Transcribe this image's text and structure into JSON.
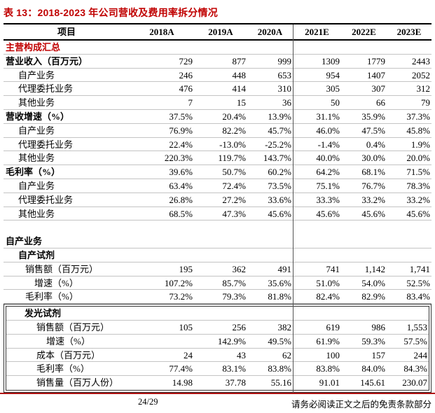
{
  "title": "表 13：2018-2023 年公司营收及费用率拆分情况",
  "table": {
    "header": [
      "项目",
      "2018A",
      "2019A",
      "2020A",
      "2021E",
      "2022E",
      "2023E"
    ],
    "rows": [
      {
        "label": "主营构成汇总",
        "style": "red-bold",
        "indent": 0,
        "box": false,
        "values": [
          "",
          "",
          "",
          "",
          "",
          ""
        ]
      },
      {
        "label": "营业收入（百万元）",
        "style": "bold",
        "indent": 0,
        "box": false,
        "values": [
          "729",
          "877",
          "999",
          "1309",
          "1779",
          "2443"
        ]
      },
      {
        "label": "自产业务",
        "style": "normal",
        "indent": 1,
        "box": false,
        "values": [
          "246",
          "448",
          "653",
          "954",
          "1407",
          "2052"
        ]
      },
      {
        "label": "代理委托业务",
        "style": "normal",
        "indent": 1,
        "box": false,
        "values": [
          "476",
          "414",
          "310",
          "305",
          "307",
          "312"
        ]
      },
      {
        "label": "其他业务",
        "style": "normal",
        "indent": 1,
        "box": false,
        "values": [
          "7",
          "15",
          "36",
          "50",
          "66",
          "79"
        ]
      },
      {
        "label": "营收增速（%）",
        "style": "bold",
        "indent": 0,
        "box": false,
        "values": [
          "37.5%",
          "20.4%",
          "13.9%",
          "31.1%",
          "35.9%",
          "37.3%"
        ]
      },
      {
        "label": "自产业务",
        "style": "normal",
        "indent": 1,
        "box": false,
        "values": [
          "76.9%",
          "82.2%",
          "45.7%",
          "46.0%",
          "47.5%",
          "45.8%"
        ]
      },
      {
        "label": "代理委托业务",
        "style": "normal",
        "indent": 1,
        "box": false,
        "values": [
          "22.4%",
          "-13.0%",
          "-25.2%",
          "-1.4%",
          "0.4%",
          "1.9%"
        ]
      },
      {
        "label": "其他业务",
        "style": "normal",
        "indent": 1,
        "box": false,
        "values": [
          "220.3%",
          "119.7%",
          "143.7%",
          "40.0%",
          "30.0%",
          "20.0%"
        ]
      },
      {
        "label": "毛利率（%）",
        "style": "bold",
        "indent": 0,
        "box": false,
        "values": [
          "39.6%",
          "50.7%",
          "60.2%",
          "64.2%",
          "68.1%",
          "71.5%"
        ]
      },
      {
        "label": "自产业务",
        "style": "normal",
        "indent": 1,
        "box": false,
        "values": [
          "63.4%",
          "72.4%",
          "73.5%",
          "75.1%",
          "76.7%",
          "78.3%"
        ]
      },
      {
        "label": "代理委托业务",
        "style": "normal",
        "indent": 1,
        "box": false,
        "values": [
          "26.8%",
          "27.2%",
          "33.6%",
          "33.3%",
          "33.2%",
          "33.2%"
        ]
      },
      {
        "label": "其他业务",
        "style": "normal",
        "indent": 1,
        "box": false,
        "values": [
          "68.5%",
          "47.3%",
          "45.6%",
          "45.6%",
          "45.6%",
          "45.6%"
        ]
      },
      {
        "label": "",
        "style": "spacer",
        "indent": 0,
        "box": false,
        "values": [
          "",
          "",
          "",
          "",
          "",
          ""
        ]
      },
      {
        "label": "自产业务",
        "style": "bold",
        "indent": 0,
        "box": false,
        "values": [
          "",
          "",
          "",
          "",
          "",
          ""
        ]
      },
      {
        "label": "自产试剂",
        "style": "bold",
        "indent": 1,
        "box": false,
        "values": [
          "",
          "",
          "",
          "",
          "",
          ""
        ]
      },
      {
        "label": "销售额（百万元）",
        "style": "normal",
        "indent": 2,
        "box": false,
        "values": [
          "195",
          "362",
          "491",
          "741",
          "1,142",
          "1,741"
        ]
      },
      {
        "label": "增速（%）",
        "style": "normal",
        "indent": 3,
        "box": false,
        "values": [
          "107.2%",
          "85.7%",
          "35.6%",
          "51.0%",
          "54.0%",
          "52.5%"
        ]
      },
      {
        "label": "毛利率（%）",
        "style": "normal",
        "indent": 2,
        "box": false,
        "values": [
          "73.2%",
          "79.3%",
          "81.8%",
          "82.4%",
          "82.9%",
          "83.4%"
        ]
      },
      {
        "label": "发光试剂",
        "style": "bold",
        "indent": 1,
        "box": true,
        "values": [
          "",
          "",
          "",
          "",
          "",
          ""
        ]
      },
      {
        "label": "销售额（百万元）",
        "style": "normal",
        "indent": 2,
        "box": true,
        "values": [
          "105",
          "256",
          "382",
          "619",
          "986",
          "1,553"
        ]
      },
      {
        "label": "增速（%）",
        "style": "normal",
        "indent": 3,
        "box": true,
        "values": [
          "",
          "142.9%",
          "49.5%",
          "61.9%",
          "59.3%",
          "57.5%"
        ]
      },
      {
        "label": "成本（百万元）",
        "style": "normal",
        "indent": 2,
        "box": true,
        "values": [
          "24",
          "43",
          "62",
          "100",
          "157",
          "244"
        ]
      },
      {
        "label": "毛利率（%）",
        "style": "normal",
        "indent": 2,
        "box": true,
        "values": [
          "77.4%",
          "83.1%",
          "83.8%",
          "83.8%",
          "84.0%",
          "84.3%"
        ]
      },
      {
        "label": "销售量（百万人份）",
        "style": "normal",
        "indent": 2,
        "box": true,
        "values": [
          "14.98",
          "37.78",
          "55.16",
          "91.01",
          "145.61",
          "230.07"
        ]
      }
    ]
  },
  "footer": {
    "page_number": "24/29",
    "disclaimer": "请务必阅读正文之后的免责条款部分"
  },
  "colors": {
    "accent_red": "#c00000",
    "footer_rule_red": "#b11212",
    "row_line_gray": "#c4c4c4",
    "estimate_divider_gray": "#555555"
  }
}
